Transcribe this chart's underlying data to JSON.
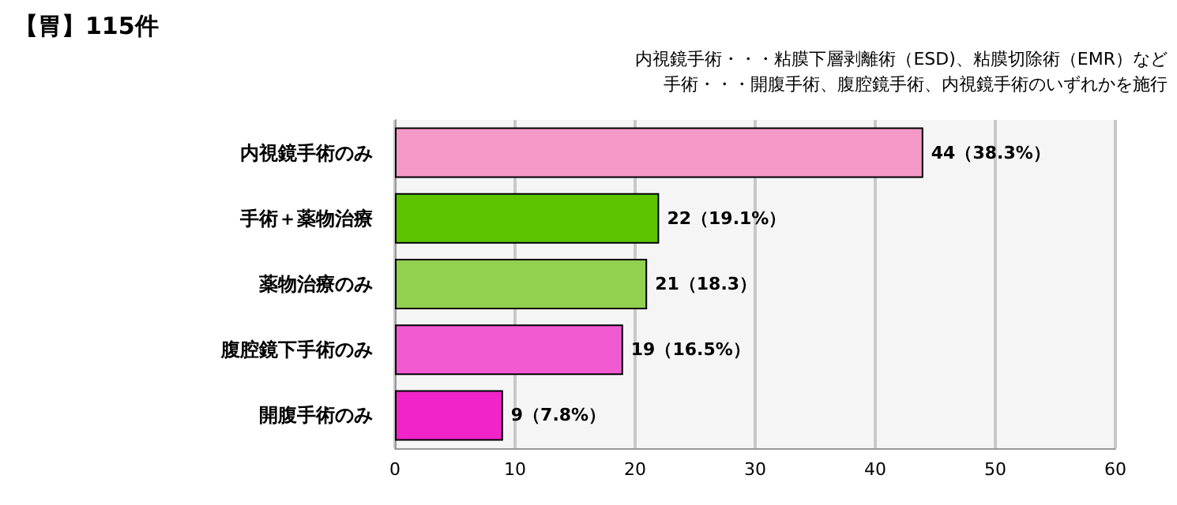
{
  "chart_data": {
    "type": "bar",
    "orientation": "horizontal",
    "title": "【胃】115件",
    "annotations": [
      "内視鏡手術・・・粘膜下層剥離術（ESD)、粘膜切除術（EMR）など",
      "手術・・・開腹手術、腹腔鏡手術、内視鏡手術のいずれかを施行"
    ],
    "categories": [
      "内視鏡手術のみ",
      "手術＋薬物治療",
      "薬物治療のみ",
      "腹腔鏡下手術のみ",
      "開腹手術のみ"
    ],
    "values": [
      44,
      22,
      21,
      19,
      9
    ],
    "colors": [
      "#f59ac8",
      "#5cc400",
      "#92d050",
      "#f25ad2",
      "#f024c8"
    ],
    "value_labels": [
      "44（38.3%）",
      "22（19.1%）",
      "21（18.3）",
      "19（16.5%）",
      "9（7.8%）"
    ],
    "xlim": [
      0,
      60
    ],
    "xticks": [
      0,
      10,
      20,
      30,
      40,
      50,
      60
    ],
    "grid": "x"
  }
}
